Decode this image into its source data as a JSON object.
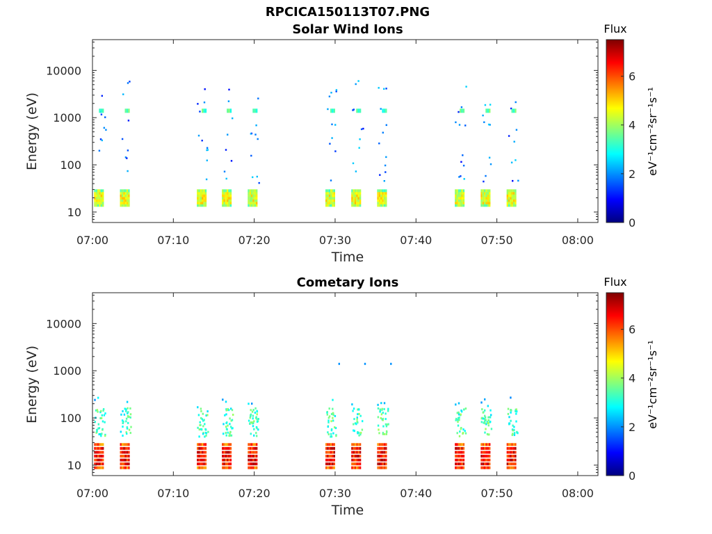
{
  "figure_title": "RPCICA150113T07.PNG",
  "chart_data": [
    {
      "type": "heatmap",
      "title": "Solar Wind Ions",
      "xlabel": "Time",
      "ylabel": "Energy (eV)",
      "x_tick_labels": [
        "07:00",
        "07:10",
        "07:20",
        "07:30",
        "07:40",
        "07:50",
        "08:00"
      ],
      "x_ticks_min": [
        0,
        10,
        20,
        30,
        40,
        50,
        60
      ],
      "xlim_min": [
        0,
        62.5
      ],
      "y_scale": "log",
      "y_tick_labels": [
        "10",
        "100",
        "1000",
        "10000"
      ],
      "y_ticks": [
        10,
        100,
        1000,
        10000
      ],
      "ylim": [
        6,
        45000
      ],
      "colorbar": {
        "title": "Flux",
        "label": "eV⁻¹cm⁻²sr⁻¹s⁻¹",
        "range": [
          0,
          7.5
        ],
        "ticks": [
          0,
          2,
          4,
          6
        ],
        "colormap": "jet"
      },
      "bursts_start_min": [
        0.2,
        3.4,
        12.9,
        16.0,
        19.2,
        28.8,
        32.0,
        35.2,
        44.8,
        48.0,
        51.2
      ],
      "burst_duration_min": 1.2,
      "low_energy_band": {
        "energy_range_eV": [
          13,
          30
        ],
        "level": 4.5
      },
      "mid_band": {
        "energy_eV": 1400,
        "level": 3.4
      },
      "scatter_level": 1.8
    },
    {
      "type": "heatmap",
      "title": "Cometary Ions",
      "xlabel": "Time",
      "ylabel": "Energy (eV)",
      "x_tick_labels": [
        "07:00",
        "07:10",
        "07:20",
        "07:30",
        "07:40",
        "07:50",
        "08:00"
      ],
      "x_ticks_min": [
        0,
        10,
        20,
        30,
        40,
        50,
        60
      ],
      "xlim_min": [
        0,
        62.5
      ],
      "y_scale": "log",
      "y_tick_labels": [
        "10",
        "100",
        "1000",
        "10000"
      ],
      "y_ticks": [
        10,
        100,
        1000,
        10000
      ],
      "ylim": [
        6,
        45000
      ],
      "colorbar": {
        "title": "Flux",
        "label": "eV⁻¹cm⁻²sr⁻¹s⁻¹",
        "range": [
          0,
          7.5
        ],
        "ticks": [
          0,
          2,
          4,
          6
        ],
        "colormap": "jet"
      },
      "bursts_start_min": [
        0.2,
        3.4,
        12.9,
        16.0,
        19.2,
        28.8,
        32.0,
        35.2,
        44.8,
        48.0,
        51.2
      ],
      "burst_duration_min": 1.2,
      "low_energy_band": {
        "energy_range_eV": [
          8,
          30
        ],
        "level": 6.5
      },
      "mid_band": {
        "energy_range_eV": [
          40,
          160
        ],
        "level": 3.3
      },
      "isolated_points": [
        {
          "t_min": 30.4,
          "energy_eV": 1400,
          "level": 2.0
        },
        {
          "t_min": 33.6,
          "energy_eV": 1400,
          "level": 2.0
        },
        {
          "t_min": 36.8,
          "energy_eV": 1400,
          "level": 2.0
        }
      ]
    }
  ]
}
